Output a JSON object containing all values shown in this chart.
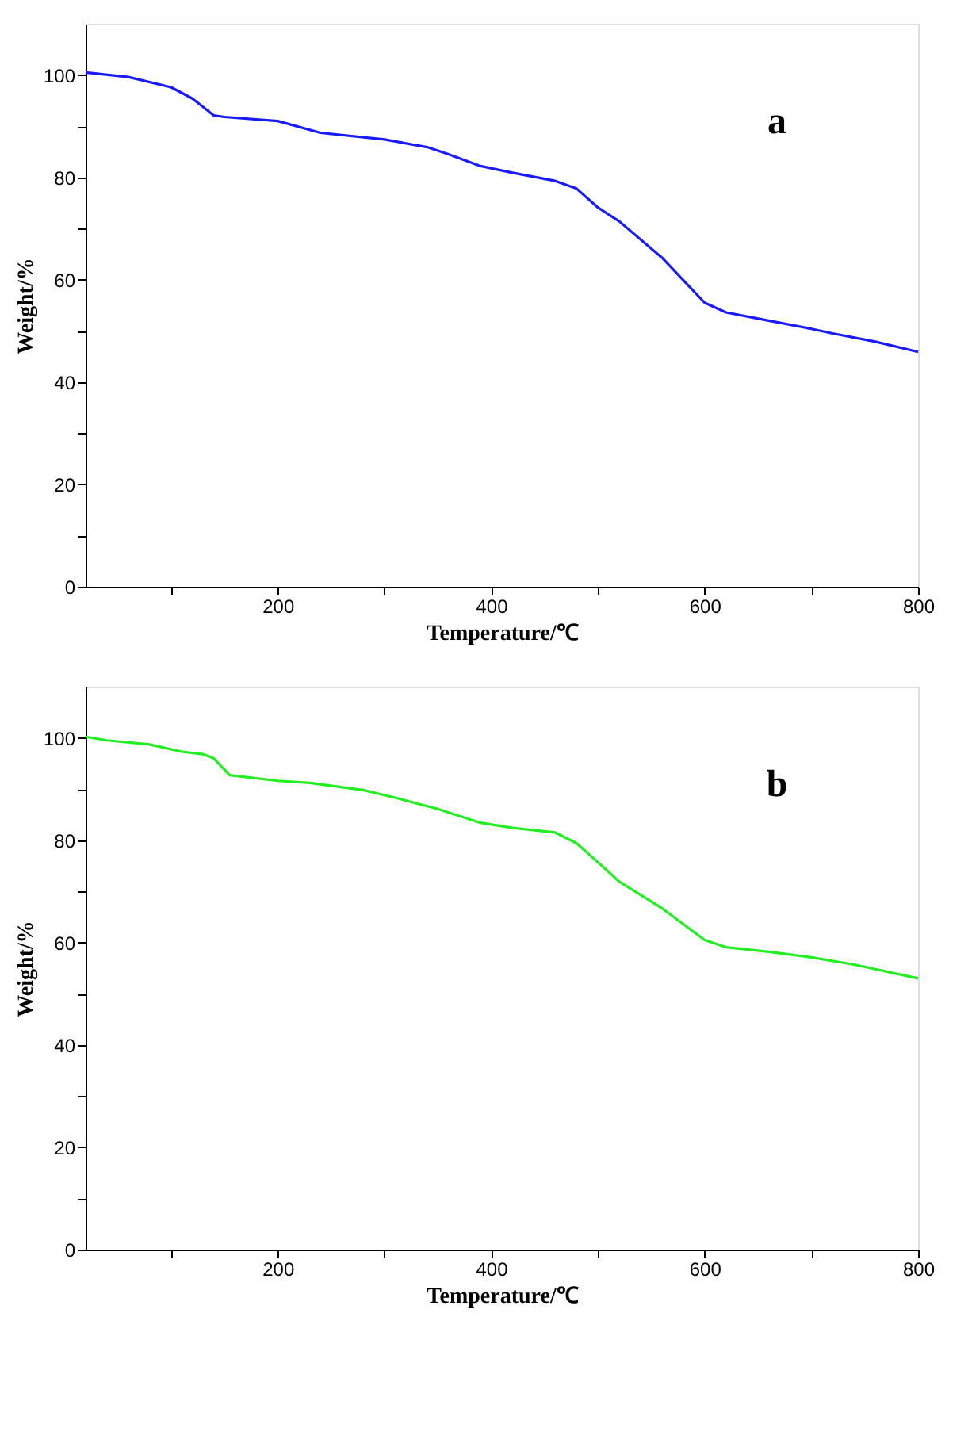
{
  "chart_data": [
    {
      "type": "line",
      "xlabel": "Temperature/℃",
      "ylabel": "Weight/%",
      "annotations": [
        "a"
      ],
      "xlim": [
        20,
        800
      ],
      "ylim": [
        0,
        110
      ],
      "xticks": [
        {
          "value": 100,
          "label": null
        },
        200,
        {
          "value": 300,
          "label": null
        },
        400,
        {
          "value": 500,
          "label": null
        },
        600,
        {
          "value": 700,
          "label": null
        },
        800
      ],
      "yticks": [
        0,
        {
          "value": 10,
          "label": null
        },
        20,
        {
          "value": 30,
          "label": null
        },
        40,
        {
          "value": 50,
          "label": null
        },
        60,
        {
          "value": 70,
          "label": null
        },
        80,
        {
          "value": 90,
          "label": null
        },
        100
      ],
      "grid": false,
      "marker": "none",
      "line_style": "solid",
      "series": [
        {
          "color": "#1a1aff",
          "x": [
            20,
            60,
            100,
            120,
            140,
            150,
            200,
            240,
            300,
            340,
            360,
            390,
            420,
            460,
            480,
            500,
            520,
            560,
            580,
            600,
            620,
            660,
            700,
            720,
            760,
            800
          ],
          "values": [
            100.5,
            99.6,
            97.6,
            95.4,
            92.1,
            91.8,
            91.0,
            88.7,
            87.4,
            85.9,
            84.5,
            82.2,
            80.9,
            79.3,
            77.8,
            74.1,
            71.4,
            64.3,
            59.9,
            55.5,
            53.6,
            52.0,
            50.4,
            49.5,
            47.9,
            45.9
          ]
        }
      ]
    },
    {
      "type": "line",
      "xlabel": "Temperature/℃",
      "ylabel": "Weight/%",
      "annotations": [
        "b"
      ],
      "xlim": [
        20,
        800
      ],
      "ylim": [
        0,
        110
      ],
      "xticks": [
        {
          "value": 100,
          "label": null
        },
        200,
        {
          "value": 300,
          "label": null
        },
        400,
        {
          "value": 500,
          "label": null
        },
        600,
        {
          "value": 700,
          "label": null
        },
        800
      ],
      "yticks": [
        0,
        {
          "value": 10,
          "label": null
        },
        20,
        {
          "value": 30,
          "label": null
        },
        40,
        {
          "value": 50,
          "label": null
        },
        60,
        {
          "value": 70,
          "label": null
        },
        80,
        {
          "value": 90,
          "label": null
        },
        100
      ],
      "grid": false,
      "marker": "none",
      "line_style": "solid",
      "series": [
        {
          "color": "#22ee22",
          "x": [
            20,
            40,
            80,
            110,
            130,
            140,
            155,
            200,
            230,
            280,
            310,
            350,
            390,
            420,
            460,
            480,
            500,
            520,
            560,
            600,
            620,
            660,
            700,
            740,
            800
          ],
          "values": [
            100.2,
            99.5,
            98.7,
            97.3,
            96.8,
            96.0,
            92.7,
            91.6,
            91.2,
            89.8,
            88.3,
            86.1,
            83.4,
            82.4,
            81.5,
            79.4,
            75.7,
            71.9,
            66.7,
            60.5,
            59.1,
            58.2,
            57.1,
            55.7,
            53.0
          ]
        }
      ]
    }
  ]
}
